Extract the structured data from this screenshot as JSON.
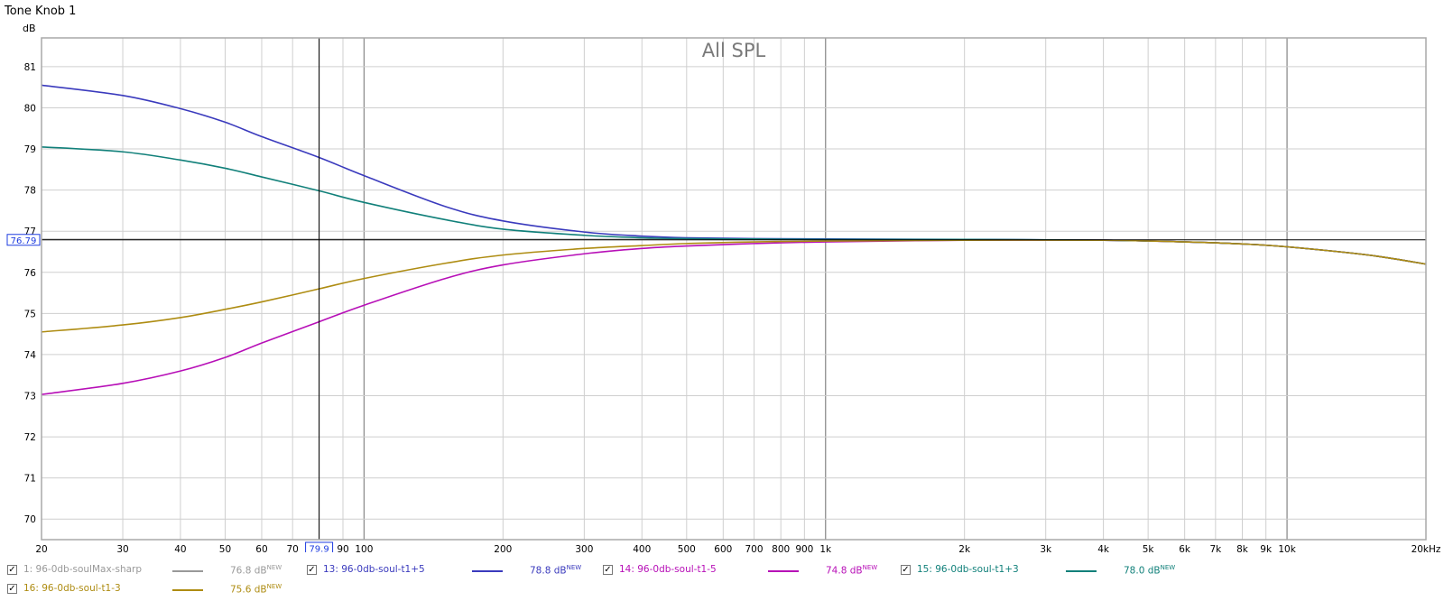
{
  "window": {
    "title": "Tone Knob 1"
  },
  "cursor": {
    "y_readout": "76.79",
    "x_readout": "79.9"
  },
  "legend": [
    {
      "label": "1: 96-0db-soulMax-sharp",
      "value": "76.8 dB",
      "badge": "NEW",
      "color": "#999999",
      "checked": "✓"
    },
    {
      "label": "13: 96-0db-soul-t1+5",
      "value": "78.8 dB",
      "badge": "NEW",
      "color": "#3a3abd",
      "checked": "✓"
    },
    {
      "label": "14: 96-0db-soul-t1-5",
      "value": "74.8 dB",
      "badge": "NEW",
      "color": "#b70fb7",
      "checked": "✓"
    },
    {
      "label": "15: 96-0db-soul-t1+3",
      "value": "78.0 dB",
      "badge": "NEW",
      "color": "#11807a",
      "checked": "✓"
    },
    {
      "label": "16: 96-0db-soul-t1-3",
      "value": "75.6 dB",
      "badge": "NEW",
      "color": "#ae8c12",
      "checked": "✓"
    }
  ],
  "chart_data": {
    "type": "line",
    "title": "All SPL",
    "ylabel": "dB",
    "x_scale": "log",
    "xlim": [
      20,
      20000
    ],
    "ylim": [
      69.5,
      81.7
    ],
    "grid": true,
    "x_ticks": [
      20,
      30,
      40,
      50,
      60,
      70,
      80,
      90,
      100,
      200,
      300,
      400,
      500,
      600,
      700,
      800,
      900,
      1000,
      2000,
      3000,
      4000,
      5000,
      6000,
      7000,
      8000,
      9000,
      10000,
      20000
    ],
    "x_tick_labels": [
      "20",
      "30",
      "40",
      "50",
      "60",
      "70",
      "",
      "90",
      "100",
      "200",
      "300",
      "400",
      "500",
      "600",
      "700",
      "800",
      "900",
      "1k",
      "2k",
      "3k",
      "4k",
      "5k",
      "6k",
      "7k",
      "8k",
      "9k",
      "10k",
      "20kHz"
    ],
    "y_ticks": [
      70,
      71,
      72,
      73,
      74,
      75,
      76,
      77,
      78,
      79,
      80,
      81
    ],
    "cursor": {
      "x": 79.9,
      "y": 76.79
    },
    "series": [
      {
        "name": "1: 96-0db-soulMax-sharp",
        "color": "#999999",
        "points": [
          [
            20,
            76.8
          ],
          [
            50,
            76.8
          ],
          [
            100,
            76.8
          ],
          [
            1000,
            76.8
          ],
          [
            2000,
            76.8
          ],
          [
            4000,
            76.78
          ],
          [
            6000,
            76.74
          ],
          [
            8000,
            76.69
          ],
          [
            10000,
            76.62
          ],
          [
            15000,
            76.42
          ],
          [
            20000,
            76.2
          ]
        ]
      },
      {
        "name": "13: 96-0db-soul-t1+5",
        "color": "#3a3abd",
        "points": [
          [
            20,
            80.55
          ],
          [
            30,
            80.3
          ],
          [
            40,
            79.98
          ],
          [
            50,
            79.65
          ],
          [
            60,
            79.3
          ],
          [
            80,
            78.79
          ],
          [
            100,
            78.35
          ],
          [
            150,
            77.6
          ],
          [
            200,
            77.25
          ],
          [
            300,
            76.98
          ],
          [
            400,
            76.88
          ],
          [
            500,
            76.84
          ],
          [
            700,
            76.82
          ],
          [
            1000,
            76.81
          ],
          [
            2000,
            76.8
          ],
          [
            4000,
            76.78
          ],
          [
            6000,
            76.74
          ],
          [
            8000,
            76.69
          ],
          [
            10000,
            76.62
          ],
          [
            15000,
            76.42
          ],
          [
            20000,
            76.2
          ]
        ]
      },
      {
        "name": "14: 96-0db-soul-t1-5",
        "color": "#b70fb7",
        "points": [
          [
            20,
            73.03
          ],
          [
            30,
            73.3
          ],
          [
            40,
            73.6
          ],
          [
            50,
            73.93
          ],
          [
            60,
            74.28
          ],
          [
            80,
            74.8
          ],
          [
            100,
            75.2
          ],
          [
            150,
            75.85
          ],
          [
            200,
            76.18
          ],
          [
            300,
            76.45
          ],
          [
            400,
            76.58
          ],
          [
            500,
            76.64
          ],
          [
            700,
            76.7
          ],
          [
            1000,
            76.74
          ],
          [
            2000,
            76.78
          ],
          [
            4000,
            76.78
          ],
          [
            6000,
            76.74
          ],
          [
            8000,
            76.69
          ],
          [
            10000,
            76.62
          ],
          [
            15000,
            76.42
          ],
          [
            20000,
            76.2
          ]
        ]
      },
      {
        "name": "15: 96-0db-soul-t1+3",
        "color": "#11807a",
        "points": [
          [
            20,
            79.05
          ],
          [
            30,
            78.93
          ],
          [
            40,
            78.73
          ],
          [
            50,
            78.53
          ],
          [
            60,
            78.32
          ],
          [
            80,
            77.98
          ],
          [
            100,
            77.7
          ],
          [
            150,
            77.28
          ],
          [
            200,
            77.05
          ],
          [
            300,
            76.9
          ],
          [
            400,
            76.84
          ],
          [
            500,
            76.82
          ],
          [
            700,
            76.81
          ],
          [
            1000,
            76.8
          ],
          [
            2000,
            76.8
          ],
          [
            4000,
            76.78
          ],
          [
            6000,
            76.74
          ],
          [
            8000,
            76.69
          ],
          [
            10000,
            76.62
          ],
          [
            15000,
            76.42
          ],
          [
            20000,
            76.2
          ]
        ]
      },
      {
        "name": "16: 96-0db-soul-t1-3",
        "color": "#ae8c12",
        "points": [
          [
            20,
            74.55
          ],
          [
            30,
            74.72
          ],
          [
            40,
            74.9
          ],
          [
            50,
            75.1
          ],
          [
            60,
            75.28
          ],
          [
            80,
            75.6
          ],
          [
            100,
            75.85
          ],
          [
            150,
            76.22
          ],
          [
            200,
            76.42
          ],
          [
            300,
            76.58
          ],
          [
            400,
            76.65
          ],
          [
            500,
            76.7
          ],
          [
            700,
            76.74
          ],
          [
            1000,
            76.76
          ],
          [
            2000,
            76.78
          ],
          [
            4000,
            76.78
          ],
          [
            6000,
            76.74
          ],
          [
            8000,
            76.69
          ],
          [
            10000,
            76.62
          ],
          [
            15000,
            76.42
          ],
          [
            20000,
            76.2
          ]
        ]
      }
    ]
  }
}
